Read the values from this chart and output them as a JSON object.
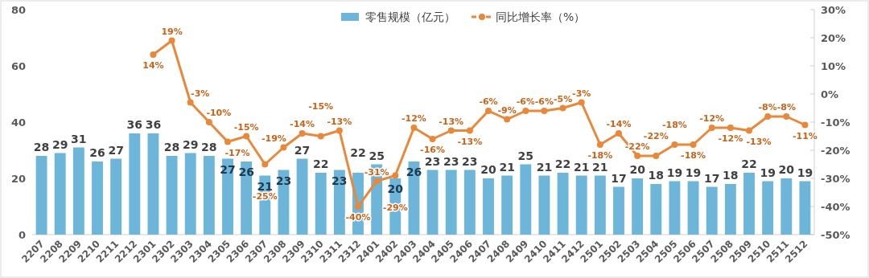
{
  "chart_data": {
    "type": "bar",
    "categories": [
      "2207",
      "2208",
      "2209",
      "2210",
      "2211",
      "2212",
      "2301",
      "2302",
      "2303",
      "2304",
      "2305",
      "2306",
      "2307",
      "2308",
      "2309",
      "2310",
      "2311",
      "2312",
      "2401",
      "2402",
      "2403",
      "2404",
      "2405",
      "2406",
      "2407",
      "2408",
      "2409",
      "2410",
      "2411",
      "2412",
      "2501",
      "2502",
      "2503",
      "2504",
      "2505",
      "2506",
      "2507",
      "2508",
      "2509",
      "2510",
      "2511",
      "2512"
    ],
    "series": [
      {
        "name": "零售规模（亿元）",
        "color": "#6db6d9",
        "values": [
          28,
          29,
          31,
          26,
          27,
          36,
          36,
          28,
          29,
          28,
          27,
          26,
          21,
          23,
          27,
          22,
          23,
          22,
          25,
          20,
          26,
          23,
          23,
          23,
          20,
          21,
          25,
          21,
          22,
          21,
          21,
          17,
          20,
          18,
          19,
          19,
          17,
          18,
          22,
          19,
          20,
          19
        ],
        "value_labels": [
          "28",
          "29",
          "31",
          "26",
          "27",
          "36",
          "36",
          "28",
          "29",
          "28",
          "27",
          "26",
          "21",
          "23",
          "27",
          "22",
          "23",
          "22",
          "25",
          "20",
          "26",
          "23",
          "23",
          "23",
          "20",
          "21",
          "25",
          "21",
          "22",
          "21",
          "21",
          "17",
          "20",
          "18",
          "19",
          "19",
          "17",
          "18",
          "22",
          "19",
          "20",
          "19"
        ]
      },
      {
        "name": "同比增长率（%）",
        "type": "line",
        "axis": "y2",
        "color": "#e8883a",
        "marker": "circle",
        "values": [
          null,
          null,
          null,
          null,
          null,
          null,
          14,
          19,
          -3,
          -10,
          -17,
          -15,
          -25,
          -19,
          -14,
          -15,
          -13,
          -40,
          -31,
          -29,
          -12,
          -16,
          -13,
          -13,
          -6,
          -9,
          -6,
          -6,
          -5,
          -3,
          -18,
          -14,
          -22,
          -22,
          -18,
          -18,
          -12,
          -12,
          -13,
          -8,
          -8,
          -11
        ],
        "value_labels": [
          null,
          null,
          null,
          null,
          null,
          null,
          "14%",
          "19%",
          "-3%",
          "-10%",
          "-17%",
          "-15%",
          "-25%",
          "-19%",
          "-14%",
          "-15%",
          "-13%",
          "-40%",
          "-31%",
          "-29%",
          "-12%",
          "-16%",
          "-13%",
          "-13%",
          "-6%",
          "-9%",
          "-6%",
          "-6%",
          "-5%",
          "-3%",
          "-18%",
          "-14%",
          "-22%",
          "-22%",
          "-18%",
          "-18%",
          "-12%",
          "-12%",
          "-13%",
          "-8%",
          "-8%",
          "-11%"
        ]
      }
    ],
    "ylim": [
      0,
      80
    ],
    "yticks": [
      0,
      20,
      40,
      60,
      80
    ],
    "y2lim": [
      -50,
      30
    ],
    "y2ticks": [
      {
        "value": -50,
        "label": "-50%"
      },
      {
        "value": -40,
        "label": "-40%"
      },
      {
        "value": -30,
        "label": "-30%"
      },
      {
        "value": -20,
        "label": "-20%"
      },
      {
        "value": -10,
        "label": "-10%"
      },
      {
        "value": 0,
        "label": "0%"
      },
      {
        "value": 10,
        "label": "10%"
      },
      {
        "value": 20,
        "label": "20%"
      },
      {
        "value": 30,
        "label": "30%"
      }
    ],
    "legend": "top"
  }
}
